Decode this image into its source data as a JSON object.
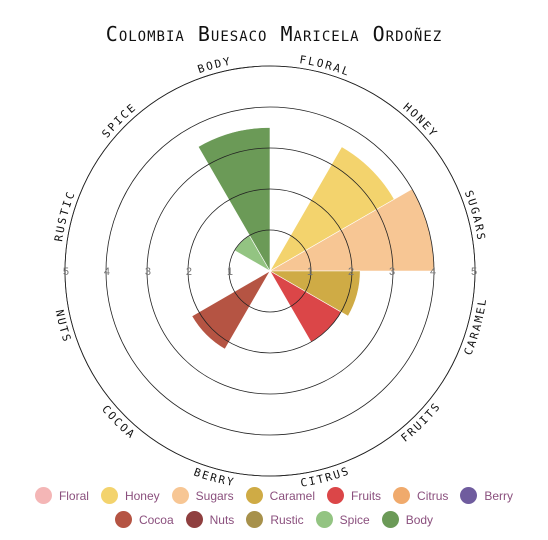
{
  "chart_data": {
    "type": "polar-area",
    "title": "Colombia Buesaco Maricela Ordoñez",
    "r_ticks": [
      "1",
      "2",
      "3",
      "4",
      "5"
    ],
    "rlim": [
      0,
      5
    ],
    "categories": [
      "Floral",
      "Honey",
      "Sugars",
      "Caramel",
      "Fruits",
      "Citrus",
      "Berry",
      "Cocoa",
      "Nuts",
      "Rustic",
      "Spice",
      "Body"
    ],
    "axis_labels": [
      "FLORAL",
      "HONEY",
      "SUGARS",
      "CARAMEL",
      "FRUITS",
      "CITRUS",
      "BERRY",
      "COCOA",
      "NUTS",
      "RUSTIC",
      "SPICE",
      "BODY"
    ],
    "values": [
      0,
      3.5,
      4,
      2.2,
      2,
      0,
      0,
      2.2,
      0,
      0,
      1,
      3.5
    ],
    "colors": [
      "#f4b6b6",
      "#f3d36d",
      "#f7c694",
      "#cfab45",
      "#db4648",
      "#f0aa6c",
      "#6f5c9e",
      "#b55443",
      "#8f3f3f",
      "#a7914b",
      "#93c482",
      "#6b9a57"
    ],
    "legend_placement": "bottom"
  }
}
